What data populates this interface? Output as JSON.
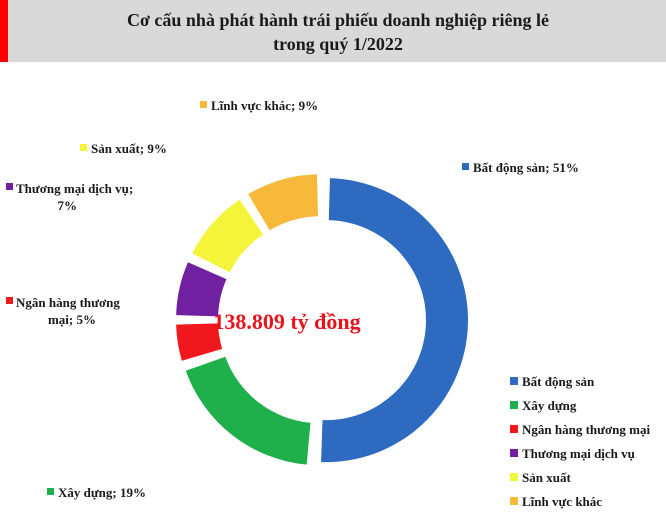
{
  "header": {
    "title": "Cơ cấu nhà phát hành trái phiếu doanh nghiệp riêng lẻ\ntrong quý 1/2022",
    "accent_color": "#ff0000",
    "bg_color": "#d9d9d9"
  },
  "chart_data": {
    "type": "pie",
    "title": "Cơ cấu nhà phát hành trái phiếu doanh nghiệp riêng lẻ trong quý 1/2022",
    "center_label": "138.809 tỷ đồng",
    "legend_position": "bottom-right",
    "categories": [
      "Bất động sản",
      "Xây dựng",
      "Ngân hàng thương mại",
      "Thương mại dịch vụ",
      "Sản xuất",
      "Lĩnh vực khác"
    ],
    "values": [
      51,
      19,
      5,
      7,
      9,
      9
    ],
    "colors": [
      "#2e6bc0",
      "#1fb04b",
      "#f0181c",
      "#7020a0",
      "#f4f43a",
      "#f6b93a"
    ],
    "data_labels": [
      [
        "Bất động sản; 51%"
      ],
      [
        "Xây dựng; 19%"
      ],
      [
        "Ngân hàng thương",
        "mại; 5%"
      ],
      [
        "Thương mại dịch vụ;",
        "7%"
      ],
      [
        "Sản xuất; 9%"
      ],
      [
        "Lĩnh vực khác; 9%"
      ]
    ]
  }
}
